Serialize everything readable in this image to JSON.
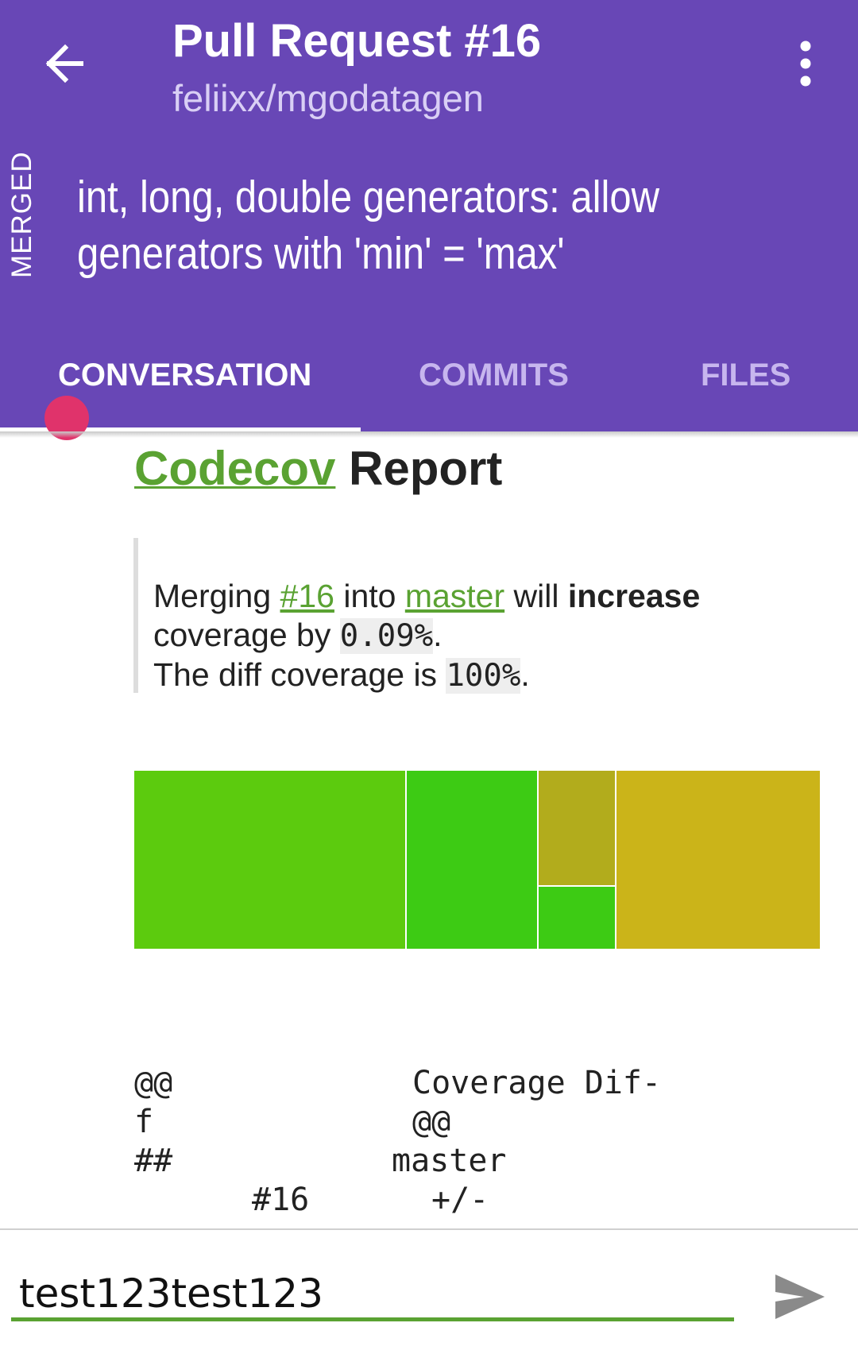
{
  "header": {
    "back_icon": "arrow-left-icon",
    "title": "Pull Request #16",
    "repo": "feliixx/mgodatagen",
    "menu_icon": "more-vertical-icon",
    "state": "MERGED",
    "pr_title": "int, long, double generators: allow generators with 'min' = 'max'"
  },
  "tabs": [
    {
      "label": "CONVERSATION",
      "active": true
    },
    {
      "label": "COMMITS",
      "active": false
    },
    {
      "label": "FILES",
      "active": false
    }
  ],
  "comment": {
    "heading_link": "Codecov",
    "heading_rest": " Report",
    "line1_prefix": "Merging ",
    "pr_link": "#16",
    "line1_mid": " into ",
    "branch_link": "master",
    "line1_mid2": " will ",
    "line1_bold": "increase",
    "line2_prefix": "coverage by ",
    "coverage_change": "0.09%",
    "line2_suffix": ".",
    "line3_prefix": "The diff coverage is ",
    "diff_coverage": "100%",
    "line3_suffix": ".",
    "sunburst_colors": {
      "a": "#5ccb0e",
      "b": "#3dcb14",
      "c": "#b2ac1c",
      "d": "#3dcb14",
      "e": "#cbb419"
    },
    "diff_table": {
      "c1_r1": "@@",
      "c1_r2": "f",
      "c1_r3": "##",
      "header": "Coverage Dif-",
      "header_cont": "@@",
      "col_master": "master",
      "col_pr": "#16",
      "col_delta": "+/-"
    }
  },
  "composer": {
    "value": "test123test123",
    "send_icon": "send-icon"
  }
}
